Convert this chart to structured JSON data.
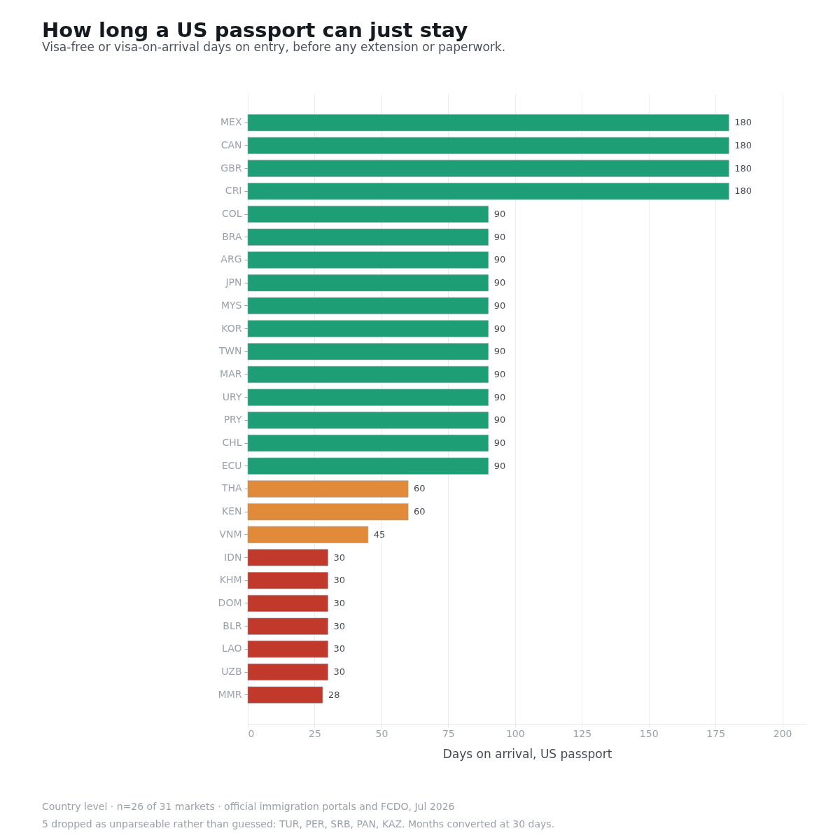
{
  "chart_data": {
    "type": "bar",
    "orientation": "horizontal",
    "title": "How long a US passport can just stay",
    "subtitle": "Visa-free or visa-on-arrival days on entry, before any extension or paperwork.",
    "xlabel": "Days on arrival, US passport",
    "categories": [
      "MEX",
      "CAN",
      "GBR",
      "CRI",
      "COL",
      "BRA",
      "ARG",
      "JPN",
      "MYS",
      "KOR",
      "TWN",
      "MAR",
      "URY",
      "PRY",
      "CHL",
      "ECU",
      "THA",
      "KEN",
      "VNM",
      "IDN",
      "KHM",
      "DOM",
      "BLR",
      "LAO",
      "UZB",
      "MMR"
    ],
    "values": [
      180,
      180,
      180,
      180,
      90,
      90,
      90,
      90,
      90,
      90,
      90,
      90,
      90,
      90,
      90,
      90,
      60,
      60,
      45,
      30,
      30,
      30,
      30,
      30,
      30,
      28
    ],
    "colors": [
      "#1e9e75",
      "#1e9e75",
      "#1e9e75",
      "#1e9e75",
      "#1e9e75",
      "#1e9e75",
      "#1e9e75",
      "#1e9e75",
      "#1e9e75",
      "#1e9e75",
      "#1e9e75",
      "#1e9e75",
      "#1e9e75",
      "#1e9e75",
      "#1e9e75",
      "#1e9e75",
      "#e08a3a",
      "#e08a3a",
      "#e08a3a",
      "#c0392b",
      "#c0392b",
      "#c0392b",
      "#c0392b",
      "#c0392b",
      "#c0392b",
      "#c0392b"
    ],
    "xlim": [
      0,
      209
    ],
    "xticks": [
      0,
      25,
      50,
      75,
      100,
      125,
      150,
      175,
      200
    ],
    "grid": "x",
    "data_labels": true,
    "annotations": [
      "Country level · n=26 of 31 markets · official immigration portals and FCDO, Jul 2026",
      "5 dropped as unparseable rather than guessed: TUR, PER, SRB, PAN, KAZ. Months converted at 30 days."
    ]
  }
}
